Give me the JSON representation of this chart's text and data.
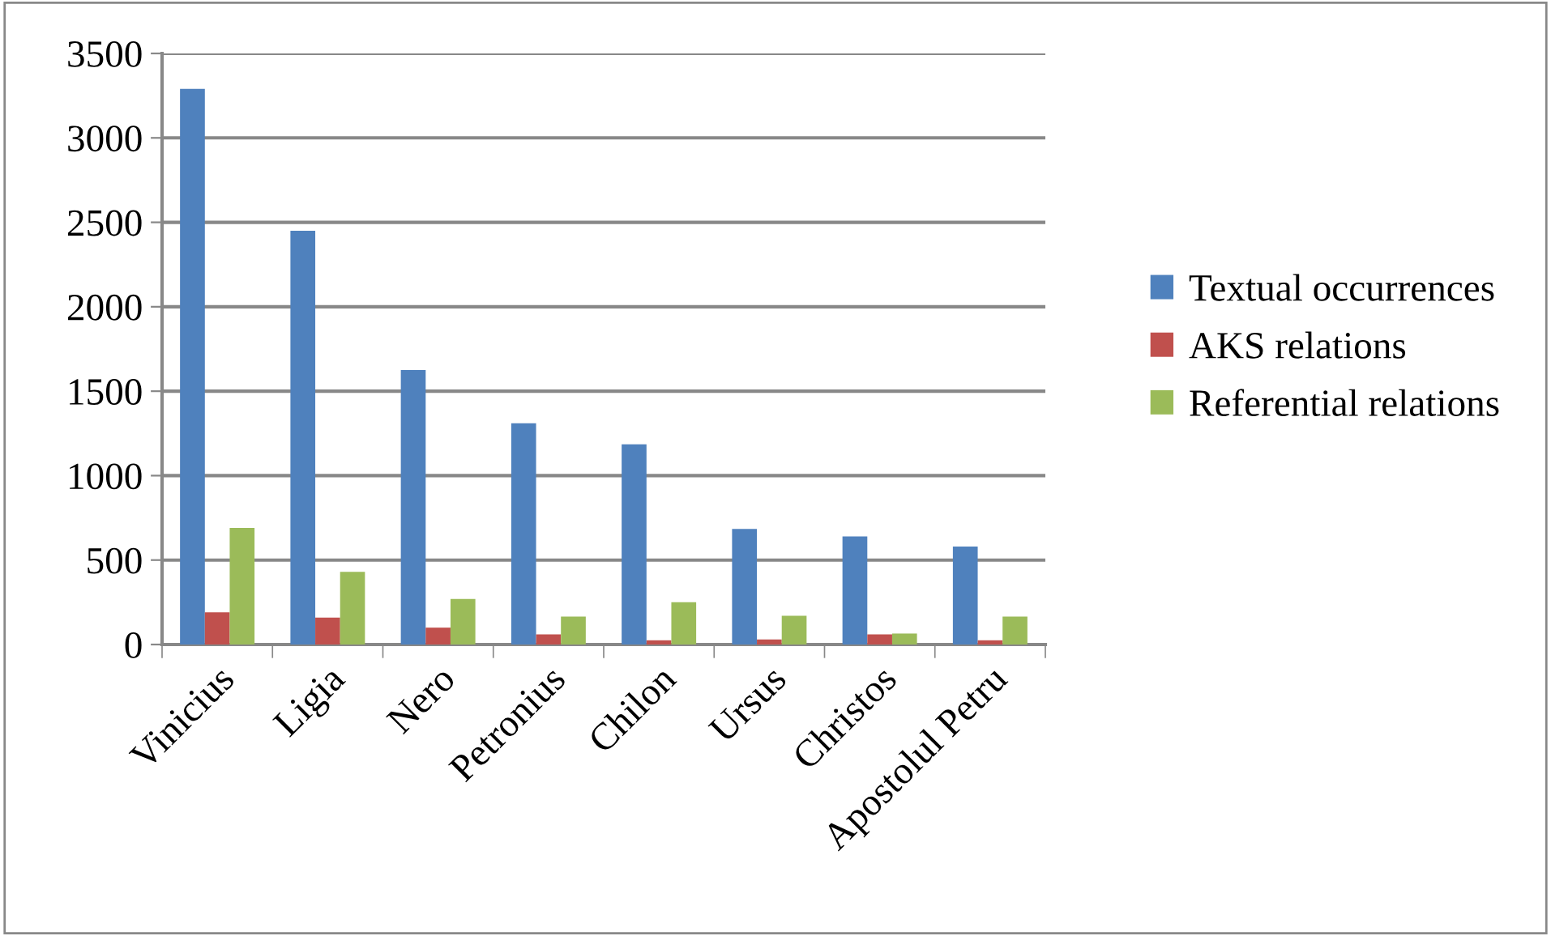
{
  "chart_data": {
    "type": "bar",
    "categories": [
      "Vinicius",
      "Ligia",
      "Nero",
      "Petronius",
      "Chilon",
      "Ursus",
      "Christos",
      "Apostolul Petru"
    ],
    "series": [
      {
        "name": "Textual occurrences",
        "color": "#4f81bd",
        "values": [
          3290,
          2450,
          1625,
          1310,
          1185,
          685,
          640,
          580
        ]
      },
      {
        "name": "AKS relations",
        "color": "#c0504d",
        "values": [
          190,
          160,
          100,
          60,
          25,
          30,
          60,
          25
        ]
      },
      {
        "name": "Referential relations",
        "color": "#9bbb59",
        "values": [
          690,
          430,
          270,
          165,
          250,
          170,
          65,
          165
        ]
      }
    ],
    "ylim": [
      0,
      3500
    ],
    "yticks": [
      0,
      500,
      1000,
      1500,
      2000,
      2500,
      3000,
      3500
    ],
    "grid": "y",
    "legend": "right"
  }
}
